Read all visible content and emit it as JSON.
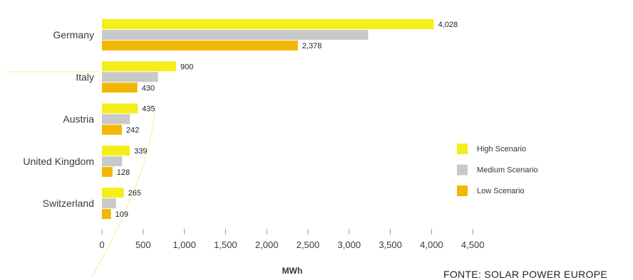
{
  "chart_data": {
    "type": "bar",
    "orientation": "horizontal",
    "categories": [
      "Germany",
      "Italy",
      "Austria",
      "United Kingdom",
      "Switzerland"
    ],
    "series": [
      {
        "name": "High Scenario",
        "color": "#f5ee1a",
        "values": [
          4028,
          900,
          435,
          339,
          265
        ],
        "labels": [
          "4,028",
          "900",
          "435",
          "339",
          "265"
        ]
      },
      {
        "name": "Medium Scenario",
        "color": "#c9c9c9",
        "values": [
          3230,
          680,
          340,
          245,
          170
        ],
        "labels": [
          "",
          "",
          "",
          "",
          ""
        ]
      },
      {
        "name": "Low Scenario",
        "color": "#f2b705",
        "values": [
          2378,
          430,
          242,
          128,
          109
        ],
        "labels": [
          "2,378",
          "430",
          "242",
          "128",
          "109"
        ]
      }
    ],
    "xlim": [
      0,
      4500
    ],
    "xticks": [
      0,
      500,
      1000,
      1500,
      2000,
      2500,
      3000,
      3500,
      4000,
      4500
    ],
    "xtick_labels": [
      "0",
      "500",
      "1,000",
      "1,500",
      "2,000",
      "2,500",
      "3,000",
      "3,500",
      "4,000",
      "4,500"
    ],
    "xlabel": "MWh",
    "legend_position": "right",
    "grid": false
  },
  "source": "FONTE: SOLAR POWER EUROPE"
}
